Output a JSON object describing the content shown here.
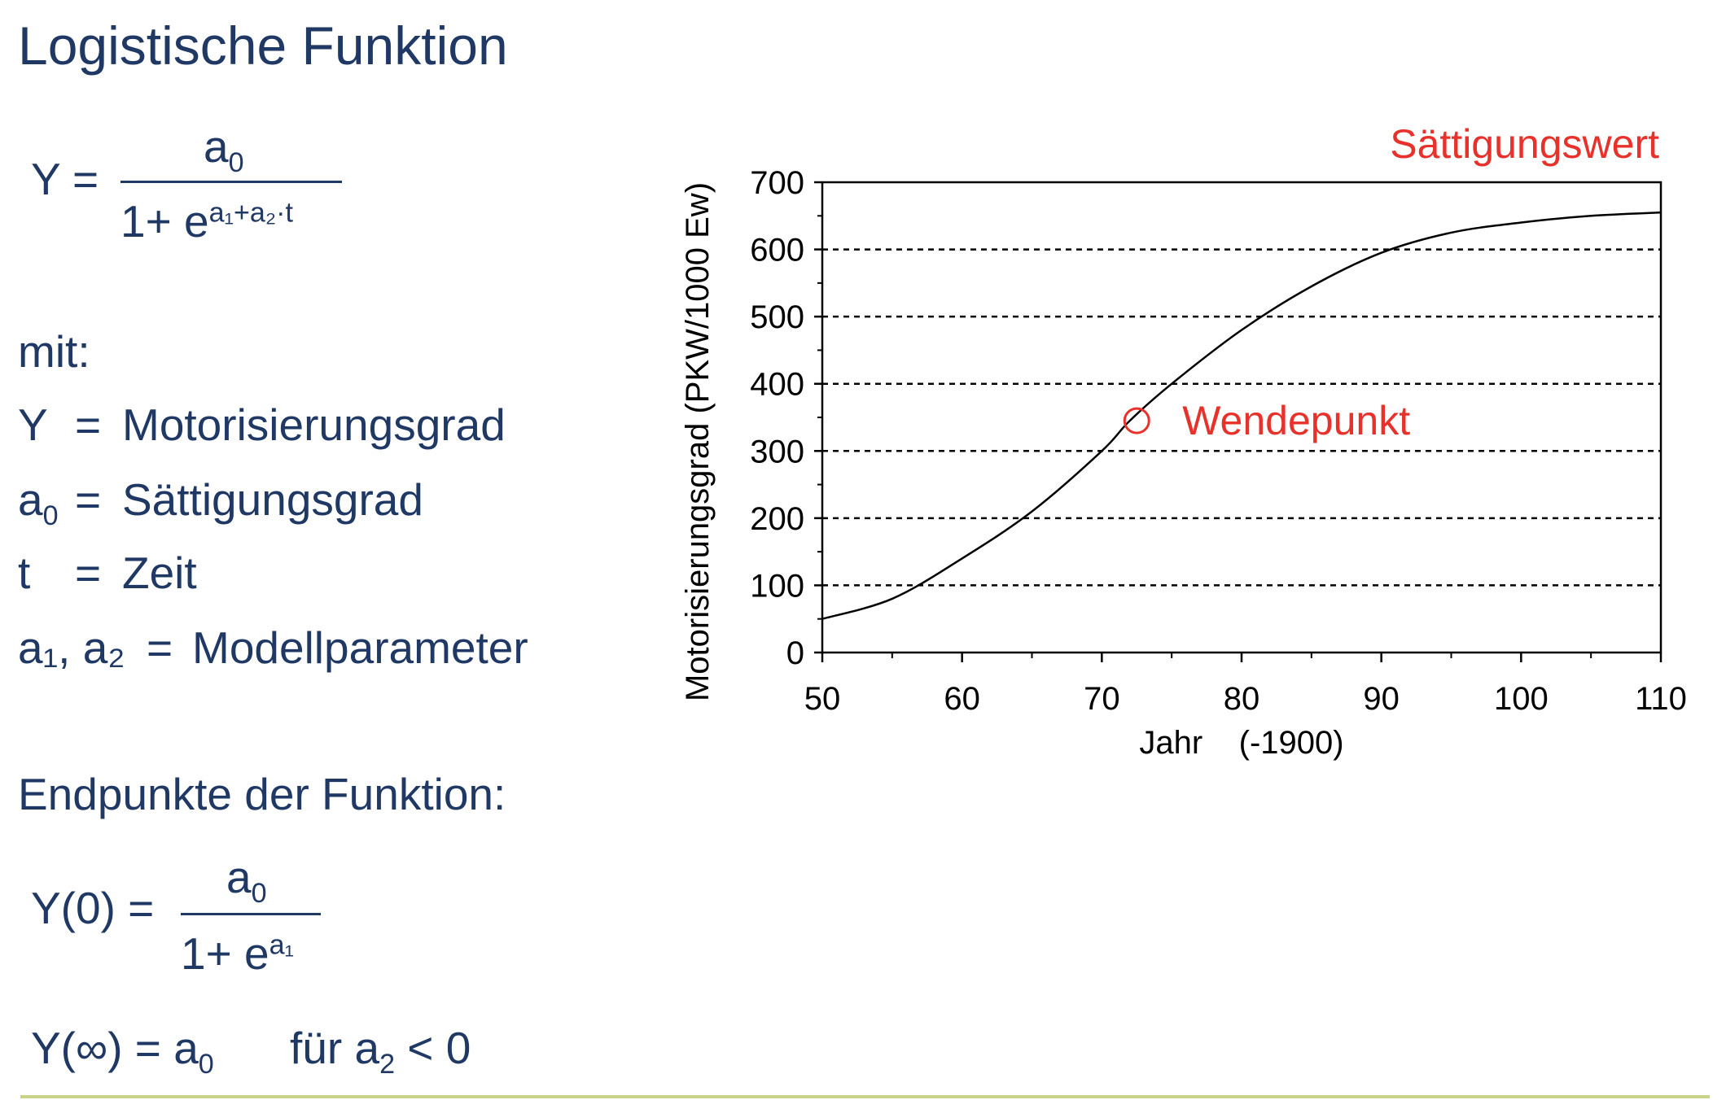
{
  "slide": {
    "title": "Logistische Funktion",
    "formula_main": {
      "lhs": "Y =",
      "numerator": "a",
      "numerator_sub": "0",
      "denominator_base": "1+ e",
      "exponent": "a₁+a₂·t"
    },
    "mit_label": "mit:",
    "definitions": [
      {
        "symbol": "Y",
        "symbol_sub": "",
        "eq": "=",
        "meaning": "Motorisierungsgrad"
      },
      {
        "symbol": "a",
        "symbol_sub": "0",
        "eq": "=",
        "meaning": "Sättigungsgrad"
      },
      {
        "symbol": "t",
        "symbol_sub": "",
        "eq": "=",
        "meaning": "Zeit"
      },
      {
        "symbol": "a₁, a₂",
        "symbol_sub": "",
        "eq": "=",
        "meaning": "Modellparameter"
      }
    ],
    "endpoints_label": "Endpunkte der Funktion:",
    "formula_y0": {
      "lhs": "Y(0) =",
      "numerator": "a",
      "numerator_sub": "0",
      "denominator_base": "1+ e",
      "exponent": "a₁"
    },
    "formula_yinf": {
      "lhs": "Y(∞) = a",
      "lhs_sub": "0",
      "condition": "für  a",
      "condition_sub": "2",
      "condition_rest": " < 0"
    }
  },
  "colors": {
    "text": "#1f3864",
    "annotation": "#e8312a",
    "curve": "#000000",
    "bottom_rule": "#c9d38a"
  },
  "chart_data": {
    "type": "line",
    "title": "",
    "xlabel": "Jahr    (-1900)",
    "ylabel": "Motorisierungsgrad (PKW/1000 Ew)",
    "xlim": [
      50,
      110
    ],
    "ylim": [
      0,
      700
    ],
    "x_ticks": [
      50,
      60,
      70,
      80,
      90,
      100,
      110
    ],
    "y_ticks": [
      0,
      100,
      200,
      300,
      400,
      500,
      600,
      700
    ],
    "grid": "horizontal dashed",
    "series": [
      {
        "x": [
          50,
          55,
          60,
          65,
          70,
          72,
          75,
          80,
          85,
          90,
          95,
          100,
          105,
          110
        ],
        "y": [
          50,
          80,
          140,
          210,
          300,
          345,
          400,
          480,
          545,
          595,
          625,
          640,
          650,
          655
        ]
      }
    ],
    "annotations": [
      {
        "text": "Sättigungswert",
        "x": 110,
        "y": 700,
        "anchor": "top-right"
      },
      {
        "text": "Wendepunkt",
        "x": 72.5,
        "y": 345,
        "marker": "open-circle"
      }
    ]
  }
}
